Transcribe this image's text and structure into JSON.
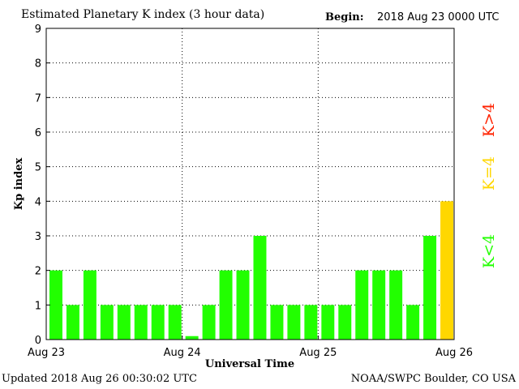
{
  "header": {
    "title": "Estimated Planetary K index (3 hour data)",
    "begin_label": "Begin:",
    "begin_value": "2018 Aug 23 0000 UTC"
  },
  "footer": {
    "updated": "Updated 2018 Aug 26 00:30:02 UTC",
    "credit": "NOAA/SWPC Boulder, CO USA"
  },
  "legend": {
    "low": "K<4",
    "equal": "K=4",
    "high": "K>4"
  },
  "colors": {
    "low": "#22ff00",
    "equal": "#ffd700",
    "high": "#ff2200"
  },
  "chart_data": {
    "type": "bar",
    "title": "Estimated Planetary K index (3 hour data)",
    "xlabel": "Universal Time",
    "ylabel": "Kp index",
    "ylim": [
      0,
      9
    ],
    "yticks": [
      0,
      1,
      2,
      3,
      4,
      5,
      6,
      7,
      8,
      9
    ],
    "x_ticks": [
      "Aug 23",
      "Aug 24",
      "Aug 25",
      "Aug 26"
    ],
    "interval_hours": 3,
    "values": [
      2,
      1,
      2,
      1,
      1,
      1,
      1,
      1,
      0.1,
      1,
      2,
      2,
      3,
      1,
      1,
      1,
      1,
      1,
      2,
      2,
      2,
      1,
      3,
      4
    ],
    "grid": true
  }
}
